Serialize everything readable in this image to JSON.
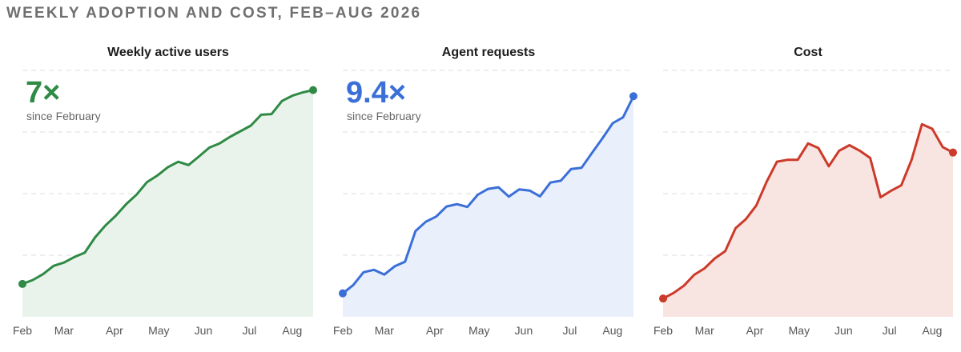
{
  "title": "WEEKLY ADOPTION AND COST, FEB–AUG 2026",
  "chart_data": [
    {
      "type": "area",
      "title": "Weekly active users",
      "highlight": "7×",
      "highlight_sub": "since February",
      "color": "#2f8a45",
      "fill": "#e9f3ec",
      "x_ticks": [
        "Feb",
        "Mar",
        "Apr",
        "May",
        "Jun",
        "Jul",
        "Aug"
      ],
      "x": [
        0,
        1,
        2,
        3,
        4,
        5,
        6,
        7,
        8,
        9,
        10,
        11,
        12,
        13,
        14,
        15,
        16,
        17,
        18,
        19,
        20,
        21,
        22,
        23,
        24,
        25,
        26,
        27,
        28
      ],
      "values": [
        1.0,
        1.12,
        1.3,
        1.55,
        1.65,
        1.82,
        1.95,
        2.42,
        2.78,
        3.08,
        3.43,
        3.72,
        4.1,
        4.3,
        4.55,
        4.72,
        4.62,
        4.88,
        5.15,
        5.28,
        5.48,
        5.65,
        5.82,
        6.15,
        6.17,
        6.57,
        6.73,
        6.83,
        6.9
      ],
      "ylim": [
        0,
        7.5
      ],
      "grid": true
    },
    {
      "type": "area",
      "title": "Agent requests",
      "highlight": "9.4×",
      "highlight_sub": "since February",
      "color": "#3a6fd8",
      "fill": "#eaf0fb",
      "x_ticks": [
        "Feb",
        "Mar",
        "Apr",
        "May",
        "Jun",
        "Jul",
        "Aug"
      ],
      "x": [
        0,
        1,
        2,
        3,
        4,
        5,
        6,
        7,
        8,
        9,
        10,
        11,
        12,
        13,
        14,
        15,
        16,
        17,
        18,
        19,
        20,
        21,
        22,
        23,
        24,
        25,
        26,
        27,
        28
      ],
      "values": [
        1.0,
        1.35,
        1.9,
        2.0,
        1.8,
        2.15,
        2.35,
        3.65,
        4.05,
        4.27,
        4.7,
        4.8,
        4.68,
        5.2,
        5.45,
        5.52,
        5.12,
        5.43,
        5.38,
        5.13,
        5.72,
        5.8,
        6.3,
        6.35,
        6.98,
        7.6,
        8.25,
        8.5,
        9.4
      ],
      "ylim": [
        0,
        10.5
      ],
      "grid": true
    },
    {
      "type": "area",
      "title": "Cost",
      "color": "#cc3a2a",
      "fill": "#f8e4e1",
      "x_ticks": [
        "Feb",
        "Mar",
        "Apr",
        "May",
        "Jun",
        "Jul",
        "Aug"
      ],
      "x": [
        0,
        1,
        2,
        3,
        4,
        5,
        6,
        7,
        8,
        9,
        10,
        11,
        12,
        13,
        14,
        15,
        16,
        17,
        18,
        19,
        20,
        21,
        22,
        23,
        24,
        25,
        26,
        27,
        28
      ],
      "values": [
        1.0,
        1.3,
        1.7,
        2.3,
        2.65,
        3.2,
        3.6,
        4.85,
        5.35,
        6.1,
        7.4,
        8.5,
        8.6,
        8.6,
        9.5,
        9.25,
        8.25,
        9.1,
        9.4,
        9.1,
        8.7,
        6.55,
        6.9,
        7.2,
        8.6,
        10.55,
        10.3,
        9.3,
        9.0
      ],
      "ylim": [
        0,
        13.5
      ],
      "grid": true
    }
  ]
}
